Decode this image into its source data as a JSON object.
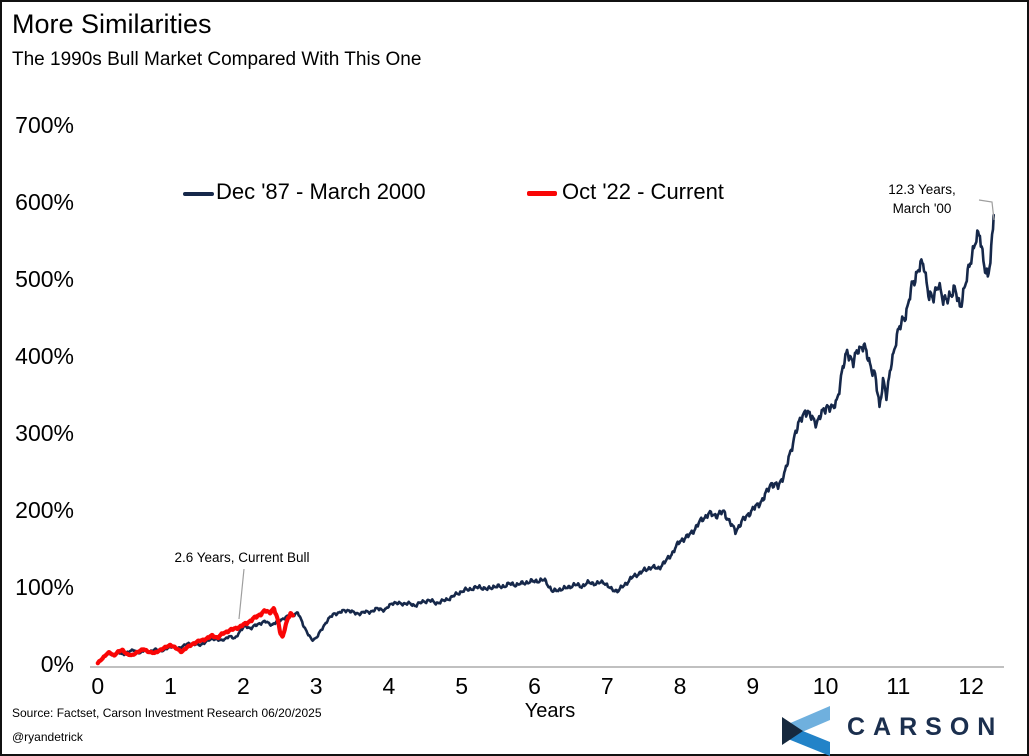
{
  "header": {
    "title": "More Similarities",
    "subtitle": "The 1990s Bull Market Compared With This One"
  },
  "footer": {
    "source": "Source: Factset, Carson Investment Research 06/20/2025",
    "handle": "@ryandetrick",
    "brand": "CARSON"
  },
  "colors": {
    "series_1990s": "#16284a",
    "series_current": "#f90606",
    "axis_line": "#ababab",
    "leader_line": "#9e9e9e",
    "logo_light_blue": "#6fb0de",
    "logo_mid_blue": "#2283c8",
    "logo_navy": "#16293e",
    "brand_navy": "#1b2f4e"
  },
  "chart_data": {
    "type": "line",
    "title": "More Similarities",
    "subtitle": "The 1990s Bull Market Compared With This One",
    "xlabel": "Years",
    "ylabel": "",
    "xlim": [
      0,
      12.4
    ],
    "ylim": [
      0,
      700
    ],
    "grid": false,
    "legend_position": "top-center",
    "x_ticks": [
      0,
      1,
      2,
      3,
      4,
      5,
      6,
      7,
      8,
      9,
      10,
      11,
      12
    ],
    "y_ticks": [
      0,
      100,
      200,
      300,
      400,
      500,
      600,
      700
    ],
    "y_tick_labels": [
      "0%",
      "100%",
      "200%",
      "300%",
      "400%",
      "500%",
      "600%",
      "700%"
    ],
    "series": [
      {
        "name": "Dec '87 - March 2000",
        "color": "#16284a",
        "points": [
          [
            0,
            1
          ],
          [
            0.05,
            6
          ],
          [
            0.1,
            11
          ],
          [
            0.15,
            14
          ],
          [
            0.2,
            11
          ],
          [
            0.28,
            15
          ],
          [
            0.35,
            12
          ],
          [
            0.42,
            16
          ],
          [
            0.5,
            18
          ],
          [
            0.58,
            14
          ],
          [
            0.65,
            18
          ],
          [
            0.72,
            16
          ],
          [
            0.8,
            19
          ],
          [
            0.9,
            17
          ],
          [
            1.0,
            23
          ],
          [
            1.1,
            20
          ],
          [
            1.2,
            25
          ],
          [
            1.3,
            27
          ],
          [
            1.4,
            24
          ],
          [
            1.5,
            30
          ],
          [
            1.6,
            33
          ],
          [
            1.7,
            30
          ],
          [
            1.8,
            36
          ],
          [
            1.88,
            33
          ],
          [
            1.95,
            42
          ],
          [
            2.03,
            50
          ],
          [
            2.1,
            46
          ],
          [
            2.2,
            52
          ],
          [
            2.3,
            55
          ],
          [
            2.4,
            51
          ],
          [
            2.5,
            57
          ],
          [
            2.6,
            61
          ],
          [
            2.68,
            64
          ],
          [
            2.75,
            66
          ],
          [
            2.82,
            52
          ],
          [
            2.88,
            40
          ],
          [
            2.94,
            31
          ],
          [
            3.0,
            34
          ],
          [
            3.08,
            45
          ],
          [
            3.16,
            58
          ],
          [
            3.25,
            65
          ],
          [
            3.35,
            68
          ],
          [
            3.45,
            70
          ],
          [
            3.55,
            65
          ],
          [
            3.65,
            67
          ],
          [
            3.75,
            68
          ],
          [
            3.85,
            72
          ],
          [
            3.95,
            70
          ],
          [
            4.05,
            80
          ],
          [
            4.15,
            78
          ],
          [
            4.25,
            79
          ],
          [
            4.35,
            76
          ],
          [
            4.45,
            80
          ],
          [
            4.55,
            83
          ],
          [
            4.65,
            79
          ],
          [
            4.75,
            82
          ],
          [
            4.85,
            86
          ],
          [
            4.95,
            92
          ],
          [
            5.05,
            96
          ],
          [
            5.15,
            98
          ],
          [
            5.25,
            100
          ],
          [
            5.35,
            97
          ],
          [
            5.45,
            101
          ],
          [
            5.55,
            100
          ],
          [
            5.65,
            104
          ],
          [
            5.75,
            103
          ],
          [
            5.85,
            105
          ],
          [
            5.95,
            107
          ],
          [
            6.05,
            108
          ],
          [
            6.14,
            109
          ],
          [
            6.25,
            94
          ],
          [
            6.35,
            97
          ],
          [
            6.45,
            99
          ],
          [
            6.55,
            103
          ],
          [
            6.65,
            101
          ],
          [
            6.75,
            106
          ],
          [
            6.85,
            104
          ],
          [
            6.95,
            107
          ],
          [
            7.05,
            97
          ],
          [
            7.15,
            95
          ],
          [
            7.25,
            104
          ],
          [
            7.35,
            113
          ],
          [
            7.48,
            120
          ],
          [
            7.6,
            126
          ],
          [
            7.7,
            124
          ],
          [
            7.8,
            133
          ],
          [
            7.9,
            145
          ],
          [
            8.0,
            160
          ],
          [
            8.1,
            165
          ],
          [
            8.2,
            175
          ],
          [
            8.3,
            188
          ],
          [
            8.4,
            195
          ],
          [
            8.5,
            193
          ],
          [
            8.6,
            198
          ],
          [
            8.68,
            185
          ],
          [
            8.76,
            172
          ],
          [
            8.85,
            185
          ],
          [
            8.95,
            196
          ],
          [
            9.05,
            205
          ],
          [
            9.15,
            215
          ],
          [
            9.25,
            235
          ],
          [
            9.35,
            230
          ],
          [
            9.45,
            252
          ],
          [
            9.52,
            275
          ],
          [
            9.58,
            300
          ],
          [
            9.65,
            315
          ],
          [
            9.72,
            330
          ],
          [
            9.8,
            320
          ],
          [
            9.88,
            314
          ],
          [
            9.95,
            325
          ],
          [
            10.02,
            336
          ],
          [
            10.1,
            330
          ],
          [
            10.16,
            345
          ],
          [
            10.23,
            380
          ],
          [
            10.3,
            408
          ],
          [
            10.38,
            390
          ],
          [
            10.45,
            410
          ],
          [
            10.52,
            414
          ],
          [
            10.6,
            392
          ],
          [
            10.68,
            375
          ],
          [
            10.74,
            332
          ],
          [
            10.79,
            372
          ],
          [
            10.84,
            345
          ],
          [
            10.9,
            390
          ],
          [
            10.97,
            422
          ],
          [
            11.05,
            445
          ],
          [
            11.12,
            460
          ],
          [
            11.2,
            495
          ],
          [
            11.28,
            515
          ],
          [
            11.35,
            518
          ],
          [
            11.42,
            480
          ],
          [
            11.48,
            472
          ],
          [
            11.55,
            498
          ],
          [
            11.62,
            468
          ],
          [
            11.7,
            480
          ],
          [
            11.78,
            484
          ],
          [
            11.85,
            466
          ],
          [
            11.92,
            490
          ],
          [
            12.0,
            530
          ],
          [
            12.06,
            548
          ],
          [
            12.12,
            558
          ],
          [
            12.18,
            520
          ],
          [
            12.23,
            497
          ],
          [
            12.27,
            530
          ],
          [
            12.31,
            583
          ]
        ]
      },
      {
        "name": "Oct '22 - Current",
        "color": "#f90606",
        "points": [
          [
            0,
            1
          ],
          [
            0.06,
            7
          ],
          [
            0.11,
            12
          ],
          [
            0.16,
            15
          ],
          [
            0.22,
            11
          ],
          [
            0.28,
            16
          ],
          [
            0.34,
            18
          ],
          [
            0.4,
            13
          ],
          [
            0.47,
            11
          ],
          [
            0.55,
            16
          ],
          [
            0.63,
            19
          ],
          [
            0.7,
            16
          ],
          [
            0.78,
            14
          ],
          [
            0.85,
            18
          ],
          [
            0.92,
            21
          ],
          [
            1.0,
            25
          ],
          [
            1.08,
            20
          ],
          [
            1.15,
            16
          ],
          [
            1.22,
            21
          ],
          [
            1.3,
            26
          ],
          [
            1.4,
            30
          ],
          [
            1.5,
            33
          ],
          [
            1.57,
            37
          ],
          [
            1.65,
            34
          ],
          [
            1.72,
            40
          ],
          [
            1.8,
            43
          ],
          [
            1.88,
            46
          ],
          [
            1.95,
            48
          ],
          [
            2.02,
            52
          ],
          [
            2.1,
            56
          ],
          [
            2.17,
            61
          ],
          [
            2.24,
            65
          ],
          [
            2.3,
            69
          ],
          [
            2.36,
            67
          ],
          [
            2.42,
            72
          ],
          [
            2.47,
            58
          ],
          [
            2.51,
            40
          ],
          [
            2.54,
            35
          ],
          [
            2.58,
            50
          ],
          [
            2.62,
            60
          ],
          [
            2.65,
            66
          ],
          [
            2.68,
            63
          ]
        ]
      }
    ],
    "annotations": [
      {
        "lines": [
          "2.6 Years, Current Bull"
        ],
        "target": [
          1.94,
          58
        ]
      },
      {
        "lines": [
          "12.3 Years,",
          "March '00"
        ],
        "target": [
          12.32,
          583
        ]
      }
    ]
  }
}
